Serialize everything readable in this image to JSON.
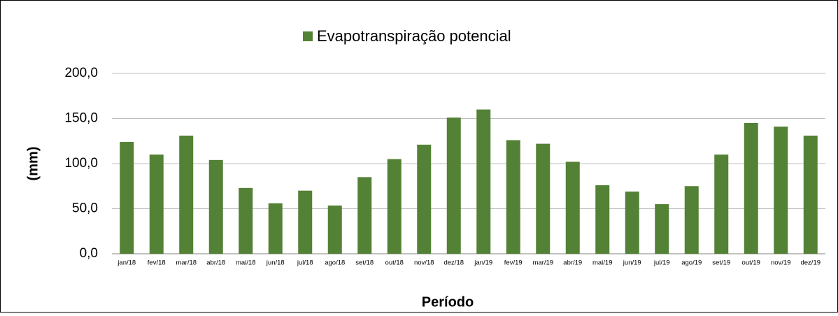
{
  "chart_data": {
    "type": "bar",
    "legend": "Evapotranspiração potencial",
    "xlabel": "Período",
    "ylabel": "(mm)",
    "color": "#538135",
    "grid": true,
    "categories": [
      "jan/18",
      "fev/18",
      "mar/18",
      "abr/18",
      "mai/18",
      "jun/18",
      "jul/18",
      "ago/18",
      "set/18",
      "out/18",
      "nov/18",
      "dez/18",
      "jan/19",
      "fev/19",
      "mar/19",
      "abr/19",
      "mai/19",
      "jun/19",
      "jul/19",
      "ago/19",
      "set/19",
      "out/19",
      "nov/19",
      "dez/19"
    ],
    "values": [
      124,
      110,
      131,
      104,
      73,
      56,
      70,
      53.5,
      85,
      105,
      121,
      151,
      160,
      126,
      122,
      102,
      76,
      69,
      55,
      75,
      110,
      145,
      141,
      131
    ],
    "ylim": [
      0,
      200
    ],
    "yticks": [
      {
        "value": 0,
        "label": "0,0"
      },
      {
        "value": 50,
        "label": "50,0"
      },
      {
        "value": 100,
        "label": "100,0"
      },
      {
        "value": 150,
        "label": "150,0"
      },
      {
        "value": 200,
        "label": "200,0"
      }
    ]
  }
}
